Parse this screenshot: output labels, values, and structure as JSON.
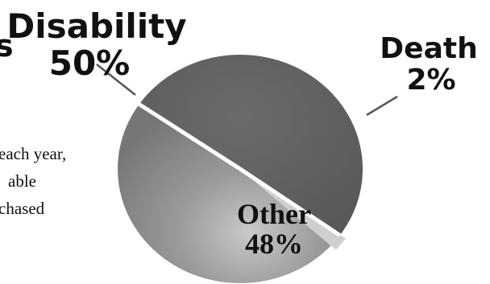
{
  "chart_data": {
    "type": "pie",
    "title": "",
    "slices": [
      {
        "label": "Disability",
        "value": 50,
        "value_label": "50%",
        "color": "#5f5f60"
      },
      {
        "label": "Death",
        "value": 2,
        "value_label": "2%",
        "color": "#cfcfcf"
      },
      {
        "label": "Other",
        "value": 48,
        "value_label": "48%",
        "color": "#8e8e8e"
      }
    ]
  },
  "fragments": {
    "title_tail": "s",
    "lines": [
      "each year,",
      "able",
      "chased"
    ]
  }
}
